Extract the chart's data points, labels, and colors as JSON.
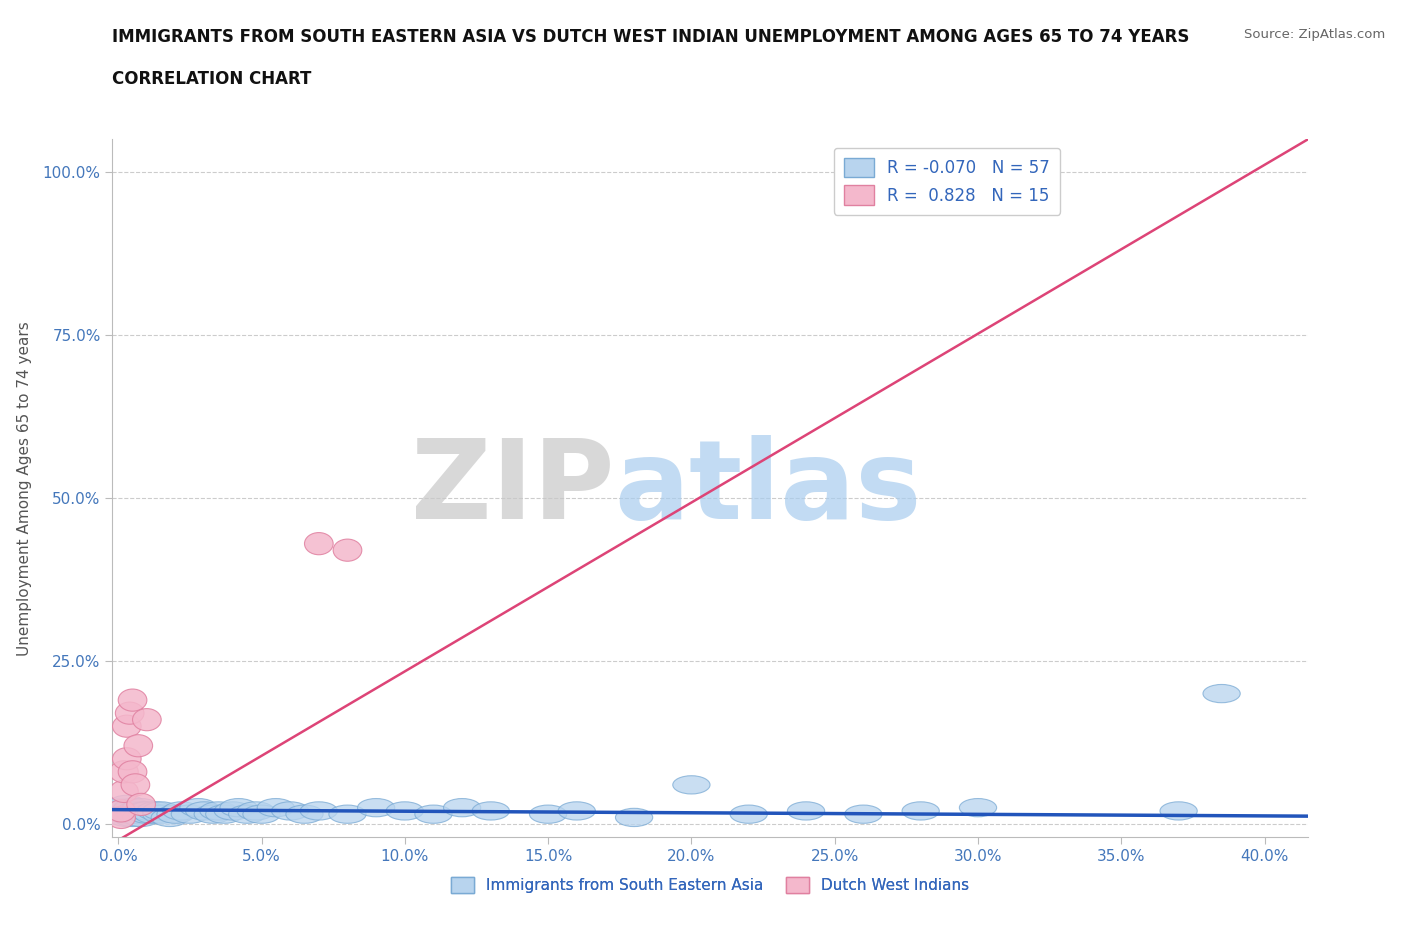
{
  "title_line1": "IMMIGRANTS FROM SOUTH EASTERN ASIA VS DUTCH WEST INDIAN UNEMPLOYMENT AMONG AGES 65 TO 74 YEARS",
  "title_line2": "CORRELATION CHART",
  "source": "Source: ZipAtlas.com",
  "xlabel_ticks": [
    0.0,
    0.05,
    0.1,
    0.15,
    0.2,
    0.25,
    0.3,
    0.35,
    0.4
  ],
  "ylabel_ticks": [
    0.0,
    0.25,
    0.5,
    0.75,
    1.0
  ],
  "ylabel_labels": [
    "0.0%",
    "25.0%",
    "50.0%",
    "75.0%",
    "100.0%"
  ],
  "xlabel_labels": [
    "0.0%",
    "5.0%",
    "10.0%",
    "15.0%",
    "20.0%",
    "25.0%",
    "30.0%",
    "35.0%",
    "40.0%"
  ],
  "xmin": -0.002,
  "xmax": 0.415,
  "ymin": -0.02,
  "ymax": 1.05,
  "blue_color": "#b8d4ee",
  "blue_edge": "#7aaad4",
  "pink_color": "#f4b8cc",
  "pink_edge": "#e080a0",
  "blue_line_color": "#2255bb",
  "pink_line_color": "#dd4477",
  "blue_R": -0.07,
  "blue_N": 57,
  "pink_R": 0.828,
  "pink_N": 15,
  "ylabel": "Unemployment Among Ages 65 to 74 years",
  "watermark_zip": "ZIP",
  "watermark_atlas": "atlas",
  "legend_label_blue": "Immigrants from South Eastern Asia",
  "legend_label_pink": "Dutch West Indians",
  "blue_x": [
    0.001,
    0.001,
    0.002,
    0.002,
    0.003,
    0.003,
    0.004,
    0.004,
    0.005,
    0.005,
    0.006,
    0.006,
    0.007,
    0.008,
    0.008,
    0.009,
    0.01,
    0.01,
    0.012,
    0.013,
    0.015,
    0.015,
    0.018,
    0.02,
    0.022,
    0.025,
    0.028,
    0.03,
    0.033,
    0.035,
    0.037,
    0.04,
    0.042,
    0.045,
    0.048,
    0.05,
    0.055,
    0.06,
    0.065,
    0.07,
    0.08,
    0.09,
    0.1,
    0.11,
    0.12,
    0.13,
    0.15,
    0.16,
    0.18,
    0.2,
    0.22,
    0.24,
    0.26,
    0.28,
    0.3,
    0.37,
    0.385
  ],
  "blue_y": [
    0.02,
    0.025,
    0.015,
    0.022,
    0.01,
    0.03,
    0.02,
    0.015,
    0.025,
    0.01,
    0.02,
    0.015,
    0.02,
    0.025,
    0.01,
    0.02,
    0.015,
    0.02,
    0.015,
    0.02,
    0.015,
    0.02,
    0.01,
    0.015,
    0.02,
    0.015,
    0.025,
    0.02,
    0.015,
    0.02,
    0.015,
    0.02,
    0.025,
    0.015,
    0.02,
    0.015,
    0.025,
    0.02,
    0.015,
    0.02,
    0.015,
    0.025,
    0.02,
    0.015,
    0.025,
    0.02,
    0.015,
    0.02,
    0.01,
    0.06,
    0.015,
    0.02,
    0.015,
    0.02,
    0.025,
    0.02,
    0.2
  ],
  "pink_x": [
    0.001,
    0.001,
    0.002,
    0.002,
    0.003,
    0.003,
    0.004,
    0.005,
    0.005,
    0.006,
    0.007,
    0.008,
    0.01,
    0.07,
    0.08
  ],
  "pink_y": [
    0.01,
    0.02,
    0.05,
    0.08,
    0.1,
    0.15,
    0.17,
    0.19,
    0.08,
    0.06,
    0.12,
    0.03,
    0.16,
    0.43,
    0.42
  ],
  "pink_line_x0": 0.0,
  "pink_line_y0": -0.025,
  "pink_line_x1": 0.415,
  "pink_line_y1": 1.05,
  "blue_line_x0": -0.002,
  "blue_line_y0": 0.022,
  "blue_line_x1": 0.415,
  "blue_line_y1": 0.012
}
